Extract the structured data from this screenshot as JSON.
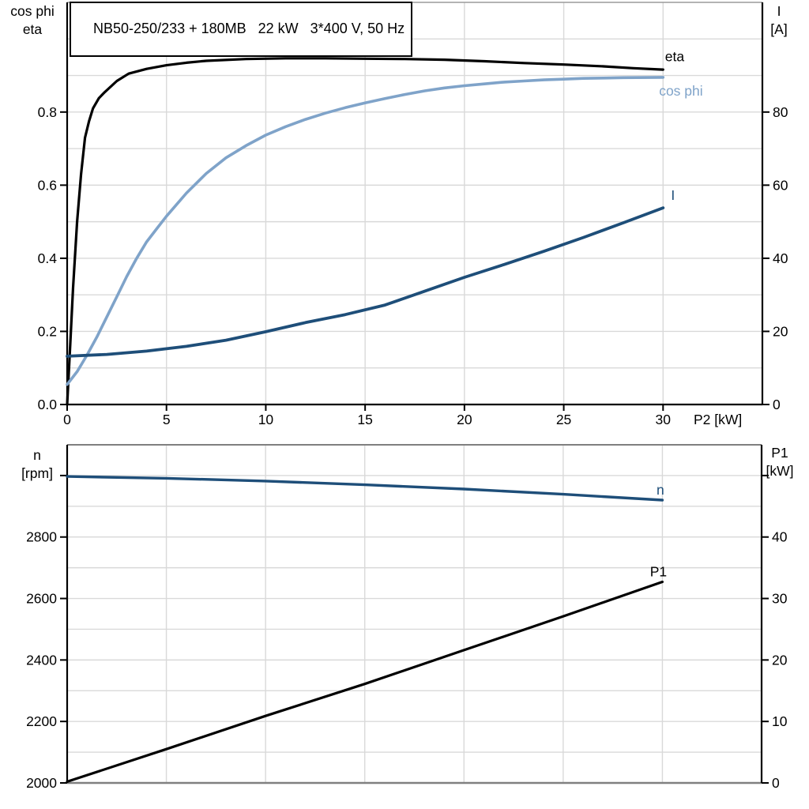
{
  "title": "NB50-250/233 + 180MB   22 kW   3*400 V, 50 Hz",
  "colors": {
    "black": "#000000",
    "dark_blue": "#1E4E79",
    "light_blue": "#7FA3C9",
    "grid": "#D9D9D9",
    "frame_gray": "#808080",
    "background": "#FFFFFF"
  },
  "chart_data": [
    {
      "type": "line",
      "title": "NB50-250/233 + 180MB   22 kW   3*400 V, 50 Hz",
      "x_axis": {
        "label": "P2 [kW]",
        "min": 0,
        "max": 35,
        "tick_values": [
          0,
          5,
          10,
          15,
          20,
          25,
          30
        ],
        "tick_labels": [
          "0",
          "5",
          "10",
          "15",
          "20",
          "25",
          "30"
        ],
        "gridlines": [
          5,
          10,
          15,
          20,
          25,
          30
        ]
      },
      "left_axis": {
        "title_lines": [
          "cos phi",
          "eta"
        ],
        "min": 0,
        "max": 1.1,
        "grid_step": 0.1,
        "tick_values": [
          0,
          0.2,
          0.4,
          0.6,
          0.8
        ],
        "tick_labels": [
          "0.0",
          "0.2",
          "0.4",
          "0.6",
          "0.8"
        ],
        "unlabeled_ticks": []
      },
      "right_axis": {
        "title_lines": [
          "I",
          "[A]"
        ],
        "min": 0,
        "max": 110,
        "grid_step": 10,
        "tick_values": [
          0,
          20,
          40,
          60,
          80
        ],
        "tick_labels": [
          "0",
          "20",
          "40",
          "60",
          "80"
        ],
        "unlabeled_ticks": []
      },
      "legend_position": "end-of-curve",
      "grid": true,
      "series": [
        {
          "name": "eta",
          "label": "eta",
          "axis": "left",
          "color": "#000000",
          "label_anchor": "start",
          "label_at": [
            30.1,
            0.952
          ],
          "points": [
            [
              0,
              0
            ],
            [
              0.15,
              0.16
            ],
            [
              0.3,
              0.32
            ],
            [
              0.5,
              0.5
            ],
            [
              0.7,
              0.63
            ],
            [
              0.9,
              0.73
            ],
            [
              1.1,
              0.775
            ],
            [
              1.3,
              0.81
            ],
            [
              1.6,
              0.838
            ],
            [
              1.9,
              0.855
            ],
            [
              2.5,
              0.885
            ],
            [
              3.1,
              0.905
            ],
            [
              4,
              0.918
            ],
            [
              5,
              0.928
            ],
            [
              6,
              0.935
            ],
            [
              7,
              0.94
            ],
            [
              9,
              0.945
            ],
            [
              11,
              0.947
            ],
            [
              13,
              0.947
            ],
            [
              15,
              0.946
            ],
            [
              17,
              0.945
            ],
            [
              19,
              0.943
            ],
            [
              21,
              0.939
            ],
            [
              23,
              0.934
            ],
            [
              25,
              0.93
            ],
            [
              27,
              0.925
            ],
            [
              28.5,
              0.92
            ],
            [
              30,
              0.916
            ]
          ]
        },
        {
          "name": "cos_phi",
          "label": "cos phi",
          "axis": "left",
          "color": "#7FA3C9",
          "label_anchor": "middle",
          "label_at": [
            30.9,
            0.858
          ],
          "points": [
            [
              0,
              0.055
            ],
            [
              0.5,
              0.09
            ],
            [
              1,
              0.135
            ],
            [
              1.5,
              0.185
            ],
            [
              2,
              0.24
            ],
            [
              2.5,
              0.295
            ],
            [
              3,
              0.35
            ],
            [
              3.5,
              0.4
            ],
            [
              4,
              0.445
            ],
            [
              4.5,
              0.48
            ],
            [
              5,
              0.515
            ],
            [
              6,
              0.578
            ],
            [
              7,
              0.632
            ],
            [
              8,
              0.675
            ],
            [
              9,
              0.708
            ],
            [
              10,
              0.737
            ],
            [
              11,
              0.76
            ],
            [
              12,
              0.78
            ],
            [
              13,
              0.797
            ],
            [
              14,
              0.812
            ],
            [
              15,
              0.825
            ],
            [
              16,
              0.837
            ],
            [
              17,
              0.848
            ],
            [
              18,
              0.858
            ],
            [
              19,
              0.866
            ],
            [
              20,
              0.872
            ],
            [
              21,
              0.877
            ],
            [
              22,
              0.882
            ],
            [
              23,
              0.885
            ],
            [
              24,
              0.888
            ],
            [
              25,
              0.89
            ],
            [
              26,
              0.892
            ],
            [
              27,
              0.893
            ],
            [
              28,
              0.894
            ],
            [
              30,
              0.895
            ]
          ]
        },
        {
          "name": "I",
          "label": "I",
          "axis": "right",
          "color": "#1E4E79",
          "label_anchor": "middle",
          "label_at": [
            30.5,
            57.3
          ],
          "points": [
            [
              0,
              13.2
            ],
            [
              2,
              13.7
            ],
            [
              4,
              14.6
            ],
            [
              6,
              15.9
            ],
            [
              8,
              17.6
            ],
            [
              10,
              19.9
            ],
            [
              12,
              22.4
            ],
            [
              14,
              24.6
            ],
            [
              16,
              27.2
            ],
            [
              18,
              31.0
            ],
            [
              20,
              34.8
            ],
            [
              22,
              38.3
            ],
            [
              24,
              41.9
            ],
            [
              26,
              45.7
            ],
            [
              28,
              49.7
            ],
            [
              30,
              53.8
            ]
          ]
        }
      ]
    },
    {
      "type": "line",
      "title": "",
      "x_axis": {
        "label": "",
        "min": 0,
        "max": 35,
        "tick_values": [],
        "tick_labels": [],
        "gridlines": [
          5,
          10,
          15,
          20,
          25,
          30
        ]
      },
      "left_axis": {
        "title_lines": [
          "n",
          "[rpm]"
        ],
        "min": 2000,
        "max": 3100,
        "grid_step": 100,
        "tick_values": [
          2000,
          2200,
          2400,
          2600,
          2800
        ],
        "tick_labels": [
          "2000",
          "2200",
          "2400",
          "2600",
          "2800"
        ],
        "unlabeled_ticks": [
          3000
        ]
      },
      "right_axis": {
        "title_lines": [
          "P1",
          "[kW]"
        ],
        "min": 0,
        "max": 55,
        "grid_step": 5,
        "tick_values": [
          0,
          10,
          20,
          30,
          40
        ],
        "tick_labels": [
          "0",
          "10",
          "20",
          "30",
          "40"
        ],
        "unlabeled_ticks": [
          50
        ]
      },
      "legend_position": "end-of-curve",
      "grid": true,
      "series": [
        {
          "name": "n",
          "label": "n",
          "axis": "left",
          "color": "#1E4E79",
          "label_anchor": "middle",
          "label_at": [
            29.9,
            2954
          ],
          "points": [
            [
              0,
              2997
            ],
            [
              5,
              2991
            ],
            [
              10,
              2982
            ],
            [
              15,
              2970
            ],
            [
              20,
              2956
            ],
            [
              25,
              2939
            ],
            [
              30,
              2920
            ]
          ]
        },
        {
          "name": "P1",
          "label": "P1",
          "axis": "right",
          "color": "#000000",
          "label_anchor": "middle",
          "label_at": [
            29.8,
            34.4
          ],
          "points": [
            [
              0,
              0.2
            ],
            [
              5,
              5.5
            ],
            [
              10,
              10.9
            ],
            [
              15,
              16.1
            ],
            [
              20,
              21.6
            ],
            [
              25,
              27.1
            ],
            [
              30,
              32.7
            ]
          ]
        }
      ]
    }
  ]
}
